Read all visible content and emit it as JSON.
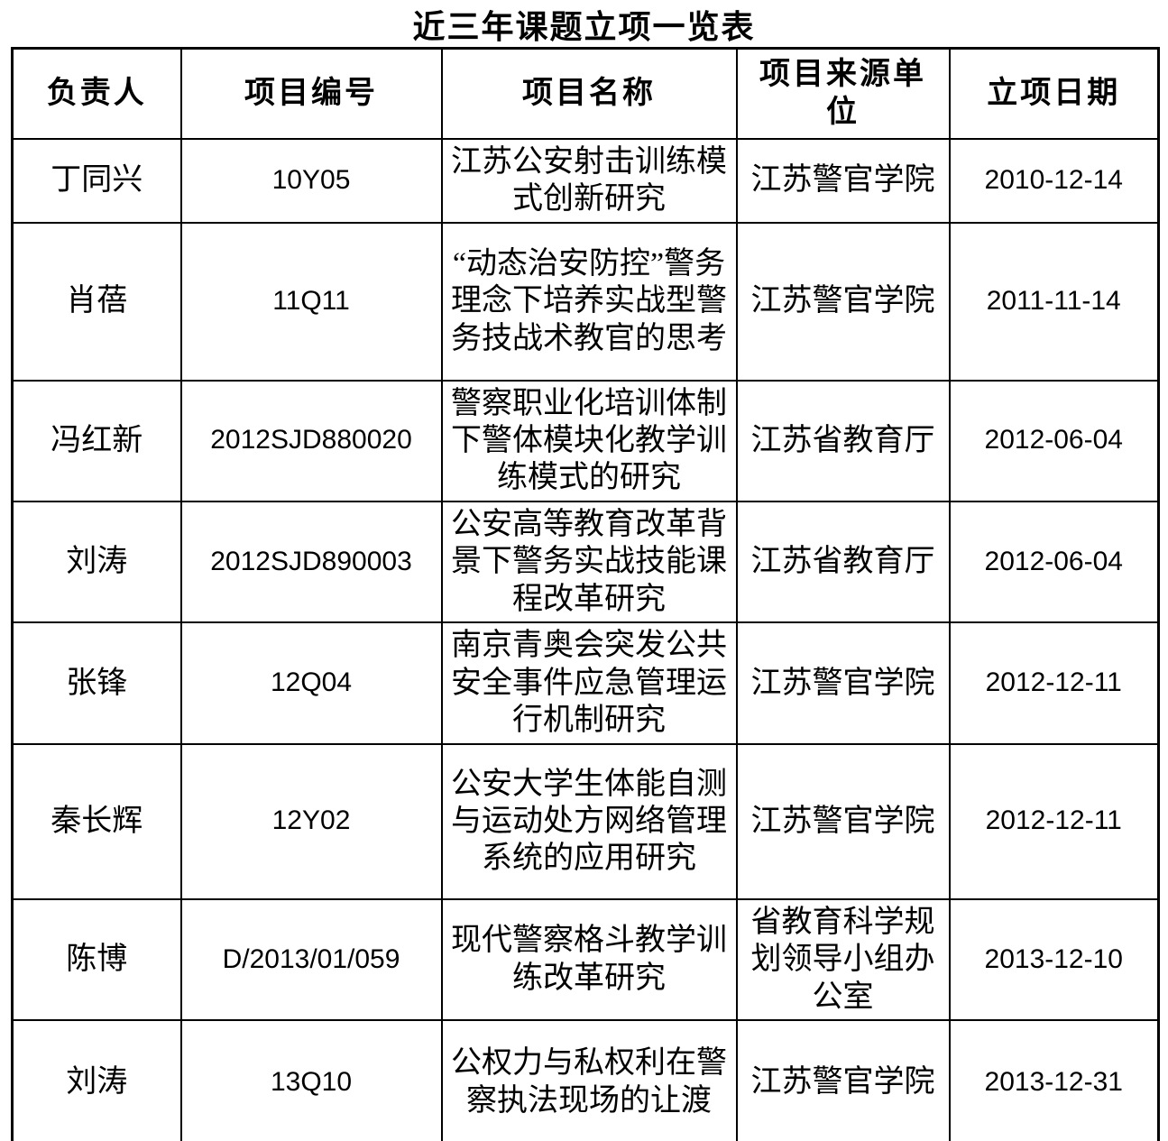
{
  "title": "近三年课题立项一览表",
  "table": {
    "headers": [
      "负责人",
      "项目编号",
      "项目名称",
      "项目来源单位",
      "立项日期"
    ],
    "rows": [
      [
        "丁同兴",
        "10Y05",
        "江苏公安射击训练模式创新研究",
        "江苏警官学院",
        "2010-12-14"
      ],
      [
        "肖蓓",
        "11Q11",
        "“动态治安防控”警务理念下培养实战型警务技战术教官的思考",
        "江苏警官学院",
        "2011-11-14"
      ],
      [
        "冯红新",
        "2012SJD880020",
        "警察职业化培训体制下警体模块化教学训练模式的研究",
        "江苏省教育厅",
        "2012-06-04"
      ],
      [
        "刘涛",
        "2012SJD890003",
        "公安高等教育改革背景下警务实战技能课程改革研究",
        "江苏省教育厅",
        "2012-06-04"
      ],
      [
        "张锋",
        "12Q04",
        "南京青奥会突发公共安全事件应急管理运行机制研究",
        "江苏警官学院",
        "2012-12-11"
      ],
      [
        "秦长辉",
        "12Y02",
        "公安大学生体能自测与运动处方网络管理系统的应用研究",
        "江苏警官学院",
        "2012-12-11"
      ],
      [
        "陈博",
        "D/2013/01/059",
        "现代警察格斗教学训练改革研究",
        "省教育科学规划领导小组办公室",
        "2013-12-10"
      ],
      [
        "刘涛",
        "13Q10",
        "公权力与私权利在警察执法现场的让渡",
        "江苏警官学院",
        "2013-12-31"
      ]
    ]
  },
  "colors": {
    "ink": "#000000",
    "paper": "#ffffff"
  }
}
